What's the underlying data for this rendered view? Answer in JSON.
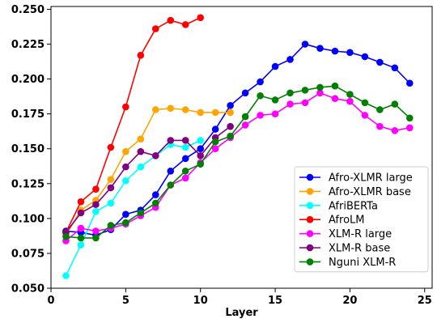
{
  "chart_data": {
    "type": "line",
    "title": "",
    "xlabel": "Layer",
    "ylabel": "",
    "xlim": [
      0,
      25.5
    ],
    "ylim": [
      0.05,
      0.252
    ],
    "x_ticks": [
      0,
      5,
      10,
      15,
      20,
      25
    ],
    "x_tick_labels": [
      "0",
      "5",
      "10",
      "15",
      "20",
      "25"
    ],
    "y_ticks": [
      0.05,
      0.075,
      0.1,
      0.125,
      0.15,
      0.175,
      0.2,
      0.225,
      0.25
    ],
    "y_tick_labels": [
      "0.050",
      "0.075",
      "0.100",
      "0.125",
      "0.150",
      "0.175",
      "0.200",
      "0.225",
      "0.250"
    ],
    "grid": false,
    "legend_position": "lower-right",
    "series": [
      {
        "name": "Afro-XLMR large",
        "color": "#0000ff",
        "x": [
          1,
          2,
          3,
          4,
          5,
          6,
          7,
          8,
          9,
          10,
          11,
          12,
          13,
          14,
          15,
          16,
          17,
          18,
          19,
          20,
          21,
          22,
          23,
          24
        ],
        "values": [
          0.091,
          0.09,
          0.088,
          0.092,
          0.103,
          0.106,
          0.117,
          0.134,
          0.143,
          0.15,
          0.164,
          0.181,
          0.19,
          0.198,
          0.209,
          0.214,
          0.225,
          0.222,
          0.22,
          0.219,
          0.216,
          0.212,
          0.208,
          0.197
        ]
      },
      {
        "name": "Afro-XLMR base",
        "color": "#ffa500",
        "x": [
          1,
          2,
          3,
          4,
          5,
          6,
          7,
          8,
          9,
          10,
          11,
          12
        ],
        "values": [
          0.088,
          0.106,
          0.113,
          0.128,
          0.148,
          0.157,
          0.178,
          0.179,
          0.178,
          0.176,
          0.176,
          0.176
        ]
      },
      {
        "name": "AfriBERTa",
        "color": "#00ffff",
        "x": [
          1,
          2,
          3,
          4,
          5,
          6,
          7,
          8,
          9,
          10
        ],
        "values": [
          0.059,
          0.081,
          0.105,
          0.111,
          0.127,
          0.137,
          0.145,
          0.153,
          0.151,
          0.156
        ]
      },
      {
        "name": "AfroLM",
        "color": "#ff0000",
        "x": [
          1,
          2,
          3,
          4,
          5,
          6,
          7,
          8,
          9,
          10
        ],
        "values": [
          0.09,
          0.112,
          0.121,
          0.151,
          0.18,
          0.217,
          0.236,
          0.242,
          0.239,
          0.244
        ]
      },
      {
        "name": "XLM-R large",
        "color": "#ff00ff",
        "x": [
          1,
          2,
          3,
          4,
          5,
          6,
          7,
          8,
          9,
          10,
          11,
          12,
          13,
          14,
          15,
          16,
          17,
          18,
          19,
          20,
          21,
          22,
          23,
          24
        ],
        "values": [
          0.084,
          0.093,
          0.091,
          0.093,
          0.096,
          0.102,
          0.108,
          0.124,
          0.129,
          0.14,
          0.15,
          0.158,
          0.167,
          0.174,
          0.175,
          0.182,
          0.183,
          0.19,
          0.186,
          0.184,
          0.174,
          0.166,
          0.163,
          0.165
        ]
      },
      {
        "name": "XLM-R base",
        "color": "#800080",
        "x": [
          1,
          2,
          3,
          4,
          5,
          6,
          7,
          8,
          9,
          10,
          11,
          12
        ],
        "values": [
          0.09,
          0.104,
          0.11,
          0.122,
          0.137,
          0.148,
          0.145,
          0.156,
          0.156,
          0.145,
          0.158,
          0.166
        ]
      },
      {
        "name": "Nguni XLM-R",
        "color": "#008000",
        "x": [
          1,
          2,
          3,
          4,
          5,
          6,
          7,
          8,
          9,
          10,
          11,
          12,
          13,
          14,
          15,
          16,
          17,
          18,
          19,
          20,
          21,
          22,
          23,
          24
        ],
        "values": [
          0.087,
          0.086,
          0.086,
          0.095,
          0.097,
          0.104,
          0.111,
          0.124,
          0.134,
          0.139,
          0.155,
          0.159,
          0.173,
          0.188,
          0.185,
          0.19,
          0.192,
          0.194,
          0.195,
          0.189,
          0.183,
          0.178,
          0.182,
          0.172
        ]
      }
    ]
  }
}
